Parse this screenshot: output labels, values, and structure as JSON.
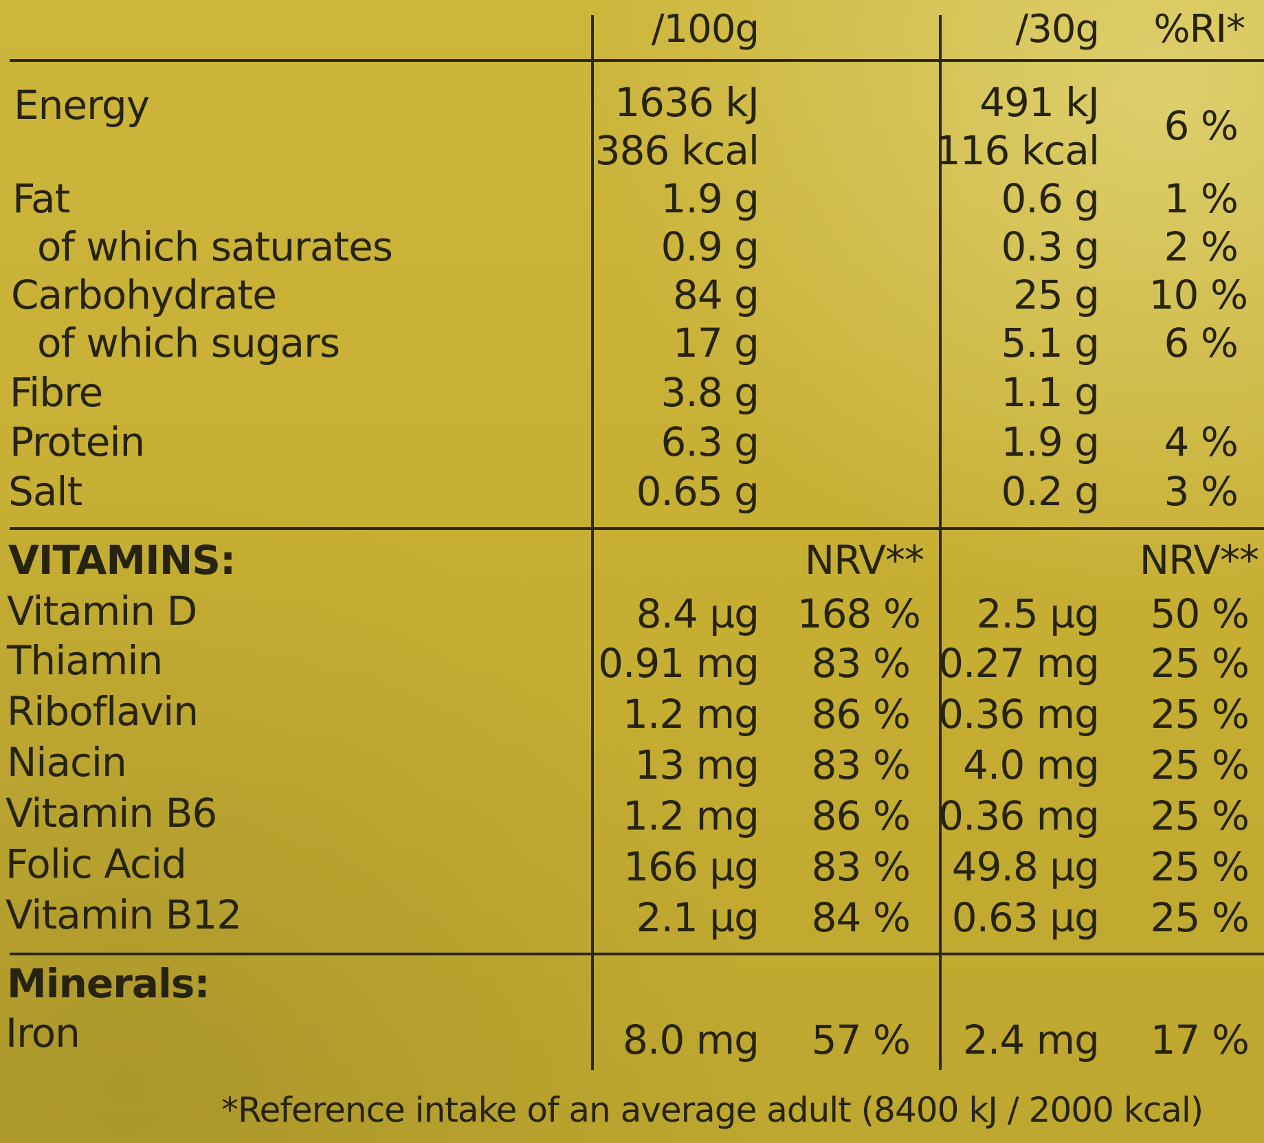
{
  "header": {
    "per100": "/100g",
    "per30": "/30g",
    "ri": "%RI*"
  },
  "nutrients": [
    {
      "name": "Energy",
      "per100": "1636 kJ",
      "per100_b": "386 kcal",
      "per30": "491 kJ",
      "per30_b": "116 kcal",
      "ri": "6 %"
    },
    {
      "name": "Fat",
      "per100": "1.9 g",
      "per30": "0.6 g",
      "ri": "1 %"
    },
    {
      "name": "of which saturates",
      "per100": "0.9 g",
      "per30": "0.3 g",
      "ri": "2 %"
    },
    {
      "name": "Carbohydrate",
      "per100": "84 g",
      "per30": "25 g",
      "ri": "10 %"
    },
    {
      "name": "of which sugars",
      "per100": "17 g",
      "per30": "5.1 g",
      "ri": "6 %"
    },
    {
      "name": "Fibre",
      "per100": "3.8 g",
      "per30": "1.1 g",
      "ri": ""
    },
    {
      "name": "Protein",
      "per100": "6.3 g",
      "per30": "1.9 g",
      "ri": "4 %"
    },
    {
      "name": "Salt",
      "per100": "0.65 g",
      "per30": "0.2 g",
      "ri": "3 %"
    }
  ],
  "vitamins": {
    "heading": "VITAMINS:",
    "nrv_label_100": "NRV**",
    "nrv_label_30": "NRV**",
    "rows": [
      {
        "name": "Vitamin D",
        "per100": "8.4 µg",
        "nrv100": "168 %",
        "per30": "2.5 µg",
        "nrv30": "50 %"
      },
      {
        "name": "Thiamin",
        "per100": "0.91 mg",
        "nrv100": "83 %",
        "per30": "0.27 mg",
        "nrv30": "25 %"
      },
      {
        "name": "Riboflavin",
        "per100": "1.2 mg",
        "nrv100": "86 %",
        "per30": "0.36 mg",
        "nrv30": "25 %"
      },
      {
        "name": "Niacin",
        "per100": "13 mg",
        "nrv100": "83 %",
        "per30": "4.0 mg",
        "nrv30": "25 %"
      },
      {
        "name": "Vitamin B6",
        "per100": "1.2 mg",
        "nrv100": "86 %",
        "per30": "0.36 mg",
        "nrv30": "25 %"
      },
      {
        "name": "Folic Acid",
        "per100": "166 µg",
        "nrv100": "83 %",
        "per30": "49.8 µg",
        "nrv30": "25 %"
      },
      {
        "name": "Vitamin B12",
        "per100": "2.1 µg",
        "nrv100": "84 %",
        "per30": "0.63 µg",
        "nrv30": "25 %"
      }
    ]
  },
  "minerals": {
    "heading": "Minerals:",
    "rows": [
      {
        "name": "Iron",
        "per100": "8.0 mg",
        "nrv100": "57 %",
        "per30": "2.4 mg",
        "nrv30": "17 %"
      }
    ]
  },
  "footnote": "*Reference intake of an average adult (8400 kJ / 2000 kcal)",
  "colors": {
    "background": "#c9b43a",
    "ink": "#262410"
  }
}
